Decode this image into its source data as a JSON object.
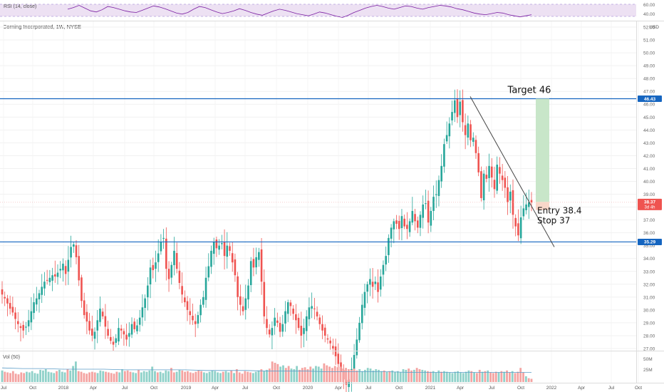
{
  "rsi": {
    "label": "RSI (14, close)",
    "ticks": [
      "60.00",
      "40.00"
    ],
    "values": [
      55,
      58,
      62,
      57,
      52,
      50,
      54,
      60,
      58,
      55,
      52,
      50,
      49,
      53,
      57,
      61,
      59,
      56,
      52,
      48,
      46,
      49,
      55,
      60,
      58,
      54,
      50,
      47,
      49,
      52,
      56,
      53,
      49,
      46,
      44,
      48,
      52,
      55,
      53,
      50,
      47,
      45,
      43,
      46,
      50,
      48,
      45,
      42,
      40,
      44,
      49,
      53,
      57,
      60,
      62,
      60,
      57,
      55,
      58,
      61,
      60,
      57,
      55,
      58,
      60,
      62,
      61,
      59,
      56,
      54,
      51,
      48,
      46,
      45,
      47,
      49,
      48,
      45,
      43,
      41,
      43,
      45
    ],
    "color": "#7b1fa2",
    "band_color": "#ede1f3"
  },
  "header": {
    "symbol_title": "Corning Incorporated, 1W, NYSE"
  },
  "price_axis": {
    "currency": "USD",
    "ticks": [
      "52.00",
      "51.00",
      "50.00",
      "49.00",
      "48.00",
      "47.00",
      "46.00",
      "45.00",
      "44.00",
      "43.00",
      "42.00",
      "41.00",
      "40.00",
      "39.00",
      "38.00",
      "37.00",
      "36.00",
      "35.00",
      "34.00",
      "33.00",
      "32.00",
      "31.00",
      "30.00",
      "29.00",
      "28.00",
      "27.00"
    ],
    "last_price_tag": "38.37",
    "countdown": "3d 4h",
    "resistance_tag": "46.43",
    "support_tag": "35.29",
    "line_color": "#1565c0",
    "up_color": "#26a69a",
    "down_color": "#ef5350"
  },
  "annotations": {
    "target": "Target 46",
    "entry": "Entry 38.4",
    "stop": "Stop 37"
  },
  "volume": {
    "label": "Vol (50)",
    "ticks": [
      "50M",
      "25M"
    ]
  },
  "time_axis": {
    "labels": [
      "Jul",
      "Oct",
      "2018",
      "Apr",
      "Jul",
      "Oct",
      "2019",
      "Apr",
      "Jul",
      "Oct",
      "2020",
      "Apr",
      "Jul",
      "Oct",
      "2021",
      "Apr",
      "Jul",
      "Oct",
      "2022",
      "Apr",
      "Jul",
      "Oct"
    ]
  },
  "chart_data": {
    "type": "candlestick",
    "title": "Corning Incorporated, 1W, NYSE",
    "x_start": "2017-07",
    "x_end": "2021-11",
    "ylim": [
      27,
      52.5
    ],
    "levels": {
      "resistance": 46.43,
      "support": 35.29,
      "last": 38.37
    },
    "trade": {
      "entry": 38.4,
      "target": 46.43,
      "stop": 37
    },
    "trendline": {
      "from": {
        "x": "2021-04",
        "y": 46.6
      },
      "to": {
        "x": "2021-12",
        "y": 34.9
      }
    },
    "weekly_closes": [
      31.2,
      30.9,
      30.5,
      30.1,
      29.8,
      29.3,
      28.9,
      28.6,
      28.4,
      28.7,
      29.2,
      29.9,
      30.6,
      30.9,
      31.3,
      31.8,
      32.2,
      32.3,
      32.5,
      32.7,
      32.6,
      32.9,
      33.2,
      33.6,
      32.8,
      33.9,
      34.9,
      35.1,
      34.1,
      32.3,
      30.7,
      29.6,
      29.1,
      28.4,
      28.0,
      28.3,
      29.2,
      30.1,
      29.5,
      28.7,
      28.0,
      27.6,
      27.3,
      27.8,
      28.6,
      28.4,
      28.1,
      27.7,
      28.2,
      28.9,
      28.5,
      28.8,
      29.4,
      30.2,
      30.9,
      31.9,
      33.3,
      33.1,
      33.7,
      34.4,
      35.3,
      35.6,
      33.2,
      32.4,
      33.5,
      34.6,
      33.2,
      32.1,
      31.2,
      30.6,
      30.0,
      29.6,
      29.2,
      28.9,
      29.6,
      30.4,
      31.0,
      32.5,
      33.4,
      34.6,
      35.3,
      34.8,
      35.0,
      35.2,
      34.2,
      35.0,
      34.6,
      33.7,
      32.7,
      31.0,
      30.4,
      29.9,
      30.9,
      31.9,
      33.8,
      33.3,
      34.1,
      34.5,
      32.2,
      29.5,
      28.6,
      28.1,
      28.6,
      29.4,
      29.0,
      28.3,
      28.9,
      29.9,
      30.6,
      30.3,
      29.7,
      29.2,
      28.6,
      28.0,
      28.6,
      29.5,
      30.2,
      30.3,
      30.1,
      29.5,
      28.9,
      28.4,
      28.0,
      27.7,
      27.4,
      27.0,
      26.4,
      25.8,
      25.2,
      24.6,
      24.2,
      24.6,
      25.4,
      26.5,
      27.7,
      29.0,
      30.4,
      31.4,
      32.0,
      32.4,
      31.8,
      32.2,
      31.4,
      32.6,
      33.5,
      34.2,
      35.6,
      36.4,
      36.9,
      36.7,
      36.3,
      37.3,
      36.5,
      36.3,
      36.9,
      37.7,
      36.9,
      36.4,
      37.4,
      38.2,
      38.3,
      36.8,
      37.7,
      38.8,
      39.0,
      40.1,
      41.2,
      42.9,
      43.6,
      44.5,
      45.4,
      46.3,
      45.0,
      46.2,
      44.6,
      43.6,
      44.5,
      43.2,
      43.4,
      42.2,
      40.7,
      38.7,
      40.6,
      40.2,
      41.2,
      40.3,
      39.4,
      41.3,
      40.6,
      40.1,
      39.5,
      38.4,
      39.2,
      37.4,
      36.5,
      35.8,
      37.2,
      37.9,
      38.2,
      38.4,
      38.37
    ],
    "volume_values": [
      18,
      16,
      15,
      14,
      17,
      13,
      12,
      15,
      14,
      16,
      15,
      17,
      14,
      13,
      19,
      18,
      20,
      16,
      15,
      14,
      17,
      19,
      16,
      15,
      20,
      18,
      25,
      32,
      17,
      16,
      14,
      13,
      15,
      16,
      15,
      14,
      18,
      17,
      16,
      15,
      14,
      13,
      16,
      15,
      20,
      17,
      18,
      16,
      15,
      14,
      19,
      15,
      17,
      16,
      18,
      24,
      17,
      15,
      16,
      14,
      18,
      17,
      22,
      15,
      16,
      19,
      18,
      16,
      17,
      15,
      14,
      16,
      18,
      17,
      15,
      14,
      16,
      18,
      17,
      15,
      14,
      16,
      17,
      15,
      18,
      14,
      20,
      15,
      13,
      17,
      16,
      15,
      14,
      16,
      18,
      20,
      17,
      19,
      21,
      32,
      30,
      28,
      24,
      26,
      22,
      25,
      21,
      20,
      25,
      19,
      22,
      23,
      20,
      24,
      21,
      25,
      24,
      21,
      29,
      26,
      24,
      22,
      25,
      23,
      24,
      21,
      22,
      20,
      19,
      21,
      18,
      20,
      17,
      19,
      22,
      21,
      18,
      20,
      19,
      17,
      18,
      16,
      17,
      18,
      16,
      17,
      15,
      20,
      19,
      21,
      18,
      19,
      22,
      20,
      19,
      18,
      17,
      16,
      17,
      15,
      18,
      16,
      17,
      16,
      15,
      14,
      16,
      17,
      15,
      14,
      16,
      18,
      17,
      15,
      14,
      19,
      16,
      17,
      18,
      15,
      14,
      16,
      15,
      17,
      16,
      18,
      15,
      17,
      14,
      16,
      22,
      15,
      9,
      6,
      5
    ],
    "volume_ma": [
      22,
      21,
      21,
      20,
      20,
      20,
      19,
      19,
      19,
      19,
      18,
      18,
      18,
      17,
      17,
      17,
      16,
      16,
      16,
      16,
      15,
      15,
      15,
      15,
      15,
      15,
      15
    ]
  }
}
